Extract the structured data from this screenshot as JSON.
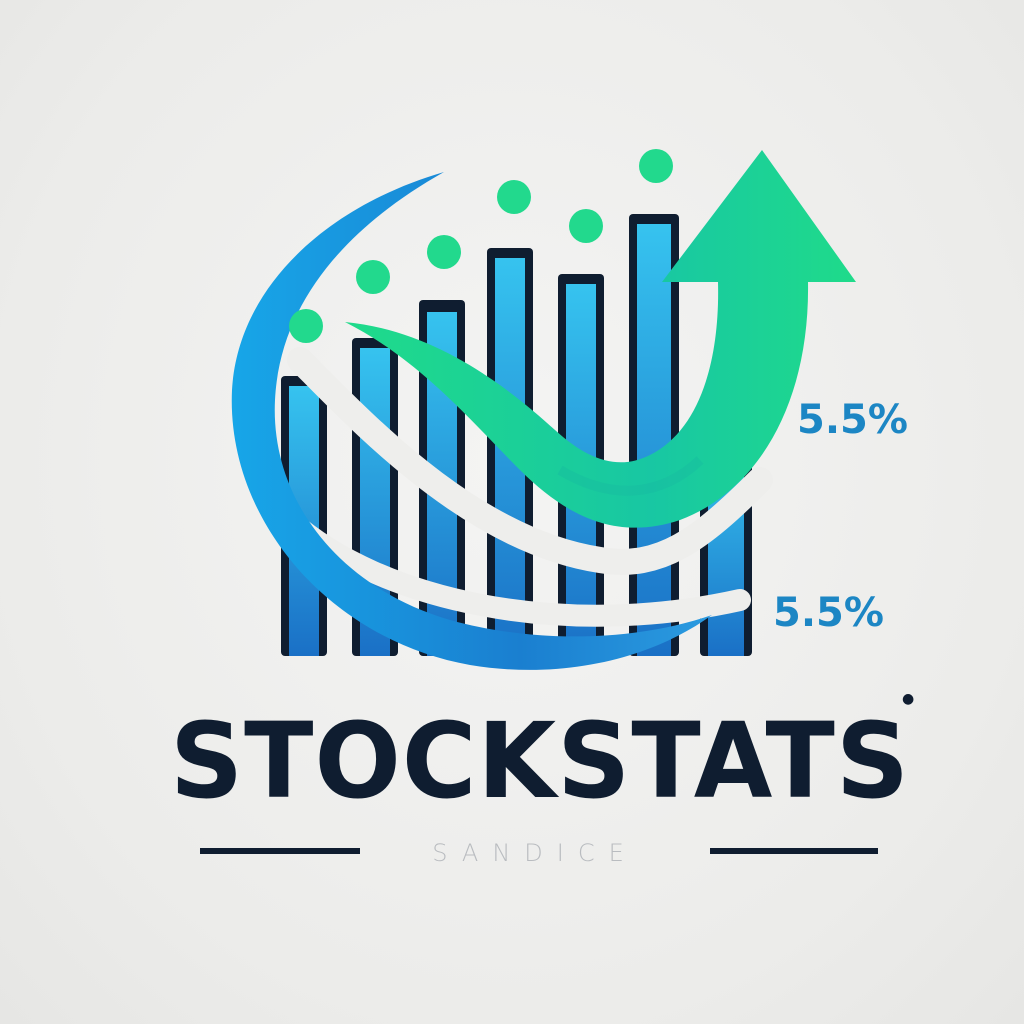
{
  "brand": {
    "name": "STOCKSTATS",
    "tagline": "SANDICE"
  },
  "annotations": {
    "upper_value": "5.5%",
    "lower_value": "5.5%"
  },
  "colors": {
    "background": "#ececea",
    "bar_top": "#36c3ef",
    "bar_bottom": "#1a70c6",
    "bar_outline": "#0f1d30",
    "swoosh_blue": "#1b8fd6",
    "arrow_green": "#1fdb8a",
    "dot_green": "#22d98d",
    "text_dark": "#0f1d30",
    "percent_blue": "#1c86c4",
    "tagline_gray": "#b9bcc0"
  },
  "icons": [
    "bar-chart-icon",
    "rising-arrow-icon",
    "swoosh-icon",
    "dot-icon"
  ]
}
